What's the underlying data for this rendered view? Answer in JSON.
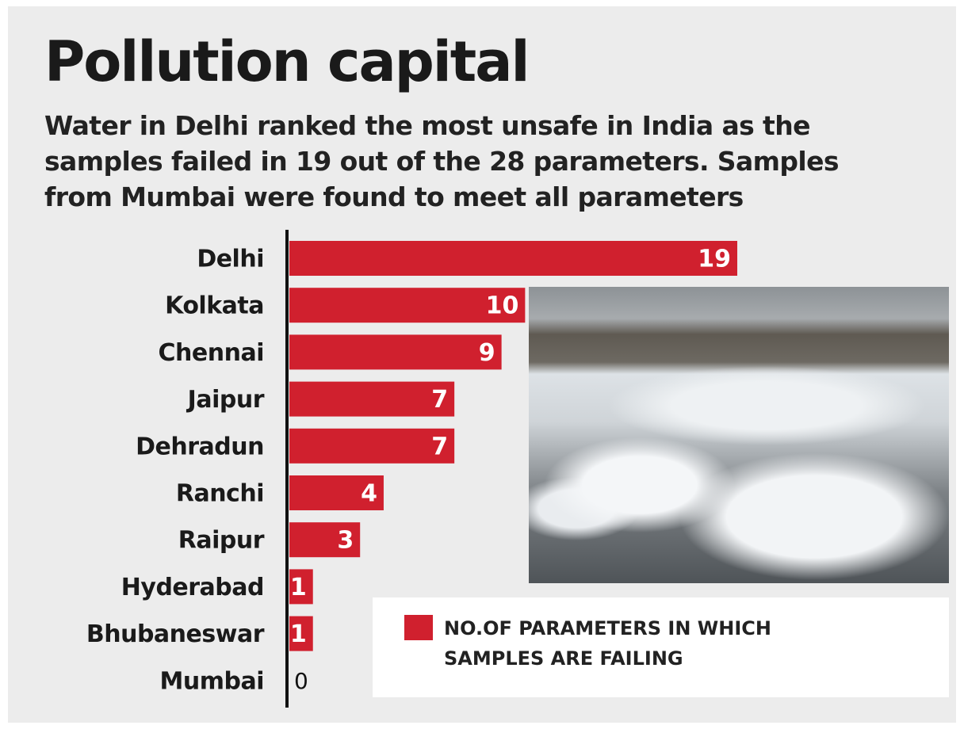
{
  "chart_data": {
    "type": "bar",
    "orientation": "horizontal",
    "title": "Pollution capital",
    "subtitle": "Water in Delhi ranked the most unsafe in India as the samples failed in 19 out of the 28 parameters. Samples from Mumbai were found to meet all parameters",
    "categories": [
      "Delhi",
      "Kolkata",
      "Chennai",
      "Jaipur",
      "Dehradun",
      "Ranchi",
      "Raipur",
      "Hyderabad",
      "Bhubaneswar",
      "Mumbai"
    ],
    "series": [
      {
        "name": "NO.OF PARAMETERS IN WHICH SAMPLES ARE FAILING",
        "color": "#d0202e",
        "values": [
          19,
          10,
          9,
          7,
          7,
          4,
          3,
          1,
          1,
          0
        ]
      }
    ]
  }
}
